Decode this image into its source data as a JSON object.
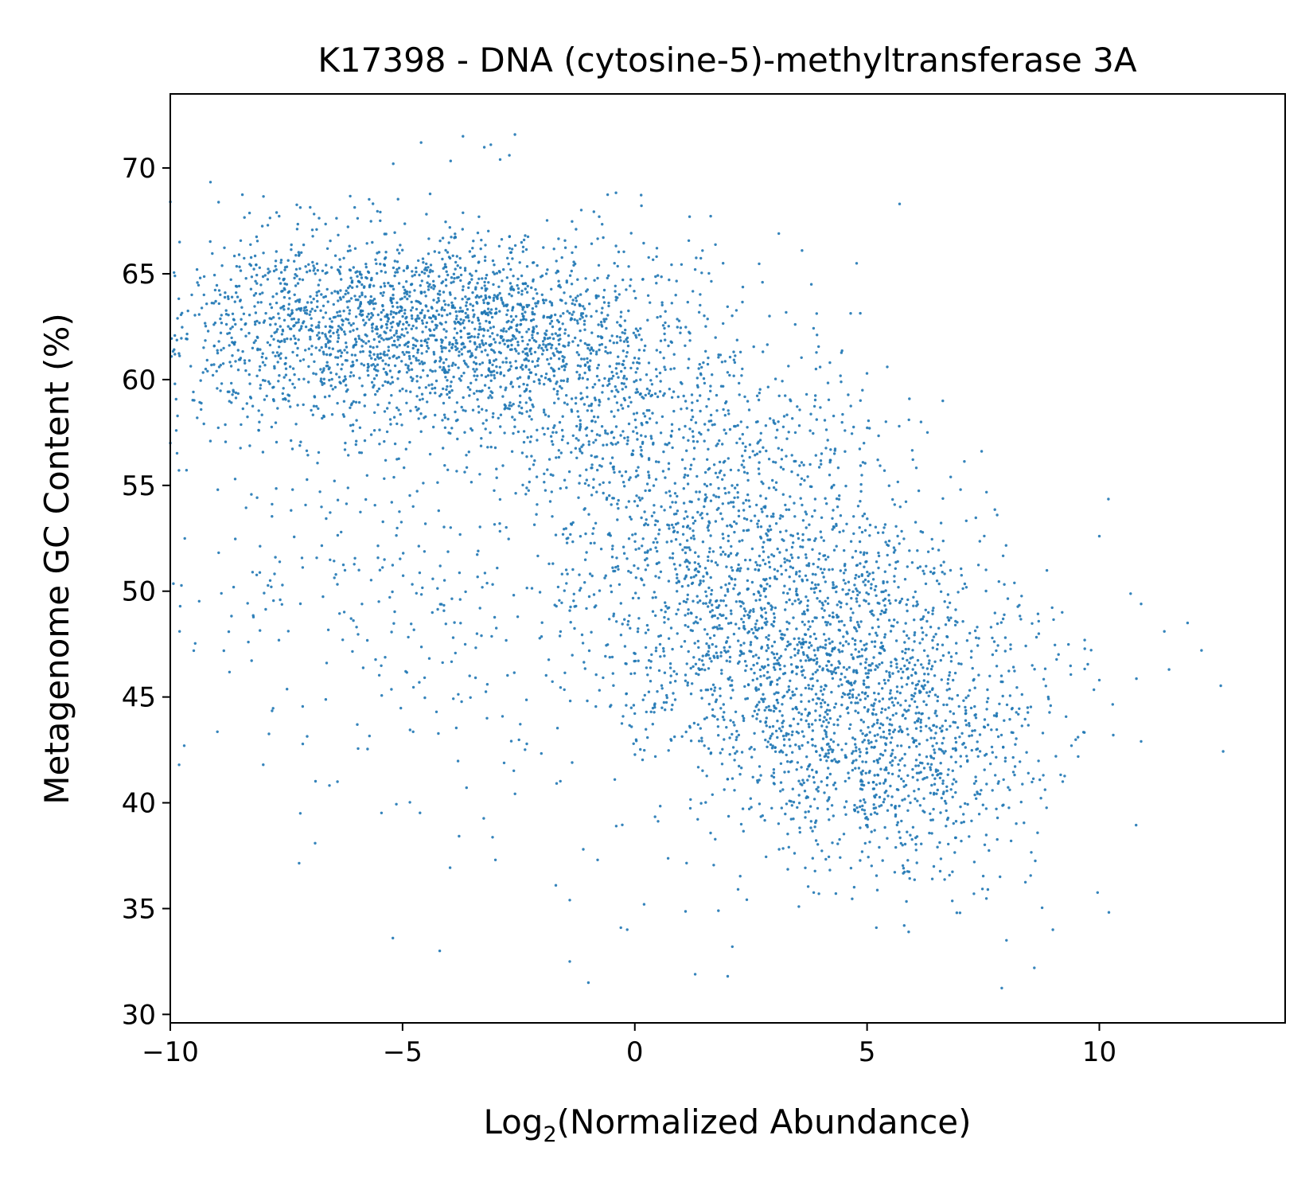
{
  "chart_data": {
    "type": "scatter",
    "title": "K17398 - DNA (cytosine-5)-methyltransferase 3A",
    "xlabel": {
      "prefix": "Log",
      "sub": "2",
      "suffix": "(Normalized Abundance)"
    },
    "ylabel": "Metagenome GC Content (%)",
    "xlim": [
      -10,
      14
    ],
    "ylim": [
      29.6,
      73.5
    ],
    "xticks": [
      -10,
      -5,
      0,
      5,
      10
    ],
    "xtick_labels": [
      "−10",
      "−5",
      "0",
      "5",
      "10"
    ],
    "yticks": [
      30,
      35,
      40,
      45,
      50,
      55,
      60,
      65,
      70
    ],
    "ytick_labels": [
      "30",
      "35",
      "40",
      "45",
      "50",
      "55",
      "60",
      "65",
      "70"
    ],
    "grid": false,
    "marker_color": "#1f77b4",
    "clusters": [
      {
        "cx": -4.5,
        "cy": 62.5,
        "sx": 2.3,
        "sy": 2.3,
        "n": 1700
      },
      {
        "cx": -7.8,
        "cy": 62.5,
        "sx": 1.3,
        "sy": 2.6,
        "n": 320
      },
      {
        "cx": -1.2,
        "cy": 60.8,
        "sx": 1.6,
        "sy": 3.0,
        "n": 520
      },
      {
        "cx": 1.5,
        "cy": 55.5,
        "sx": 2.0,
        "sy": 3.6,
        "n": 750
      },
      {
        "cx": 3.5,
        "cy": 47.5,
        "sx": 2.2,
        "sy": 3.6,
        "n": 1550
      },
      {
        "cx": 5.3,
        "cy": 42.0,
        "sx": 1.6,
        "sy": 2.8,
        "n": 700
      },
      {
        "cx": -4.5,
        "cy": 50.0,
        "sx": 3.2,
        "sy": 5.2,
        "n": 420
      },
      {
        "cx": 7.3,
        "cy": 44.5,
        "sx": 1.2,
        "sy": 4.5,
        "n": 180
      }
    ],
    "outliers": [
      [
        -3.7,
        71.5
      ],
      [
        -3.1,
        71.1
      ],
      [
        -4.6,
        71.2
      ],
      [
        -2.7,
        70.6
      ],
      [
        -5.2,
        70.2
      ],
      [
        -2.9,
        70.4
      ],
      [
        5.7,
        68.3
      ],
      [
        3.1,
        66.9
      ],
      [
        3.6,
        66.1
      ],
      [
        3.8,
        64.5
      ],
      [
        1.3,
        65.2
      ],
      [
        1.9,
        65.5
      ],
      [
        2.9,
        63.0
      ],
      [
        12.2,
        47.2
      ],
      [
        11.9,
        48.5
      ],
      [
        11.4,
        48.1
      ],
      [
        11.5,
        46.3
      ],
      [
        10.9,
        49.4
      ],
      [
        10.0,
        52.6
      ],
      [
        10.0,
        45.8
      ],
      [
        10.3,
        43.2
      ],
      [
        10.9,
        42.9
      ],
      [
        9.4,
        42.7
      ],
      [
        9.0,
        34.0
      ],
      [
        8.6,
        32.2
      ],
      [
        8.0,
        33.5
      ],
      [
        9.2,
        49.0
      ],
      [
        8.9,
        45.0
      ],
      [
        -4.2,
        33.0
      ],
      [
        -1.4,
        32.5
      ],
      [
        -1.0,
        31.5
      ],
      [
        1.3,
        31.9
      ],
      [
        2.0,
        31.8
      ],
      [
        2.1,
        33.2
      ],
      [
        -1.7,
        36.1
      ],
      [
        -1.4,
        35.4
      ],
      [
        -0.8,
        37.3
      ],
      [
        -0.3,
        34.1
      ],
      [
        0.2,
        35.2
      ],
      [
        1.8,
        34.9
      ],
      [
        -3.0,
        37.3
      ],
      [
        -0.4,
        38.9
      ],
      [
        -7.2,
        39.5
      ],
      [
        -9.7,
        42.7
      ],
      [
        -8.0,
        41.8
      ],
      [
        -6.4,
        41.0
      ],
      [
        -9.8,
        48.1
      ],
      [
        -8.9,
        49.9
      ],
      [
        -10.0,
        68.4
      ],
      [
        -9.9,
        64.9
      ],
      [
        -10.0,
        57.0
      ],
      [
        -9.9,
        61.2
      ],
      [
        -9.8,
        66.5
      ],
      [
        -9.9,
        59.8
      ],
      [
        4.2,
        60.8
      ],
      [
        4.9,
        59.5
      ],
      [
        5.9,
        58.1
      ],
      [
        6.3,
        57.5
      ],
      [
        6.8,
        55.4
      ],
      [
        7.8,
        53.6
      ],
      [
        5.2,
        34.1
      ],
      [
        5.8,
        34.2
      ],
      [
        7.0,
        34.8
      ],
      [
        7.3,
        35.7
      ],
      [
        7.6,
        35.9
      ],
      [
        8.1,
        38.2
      ]
    ]
  }
}
